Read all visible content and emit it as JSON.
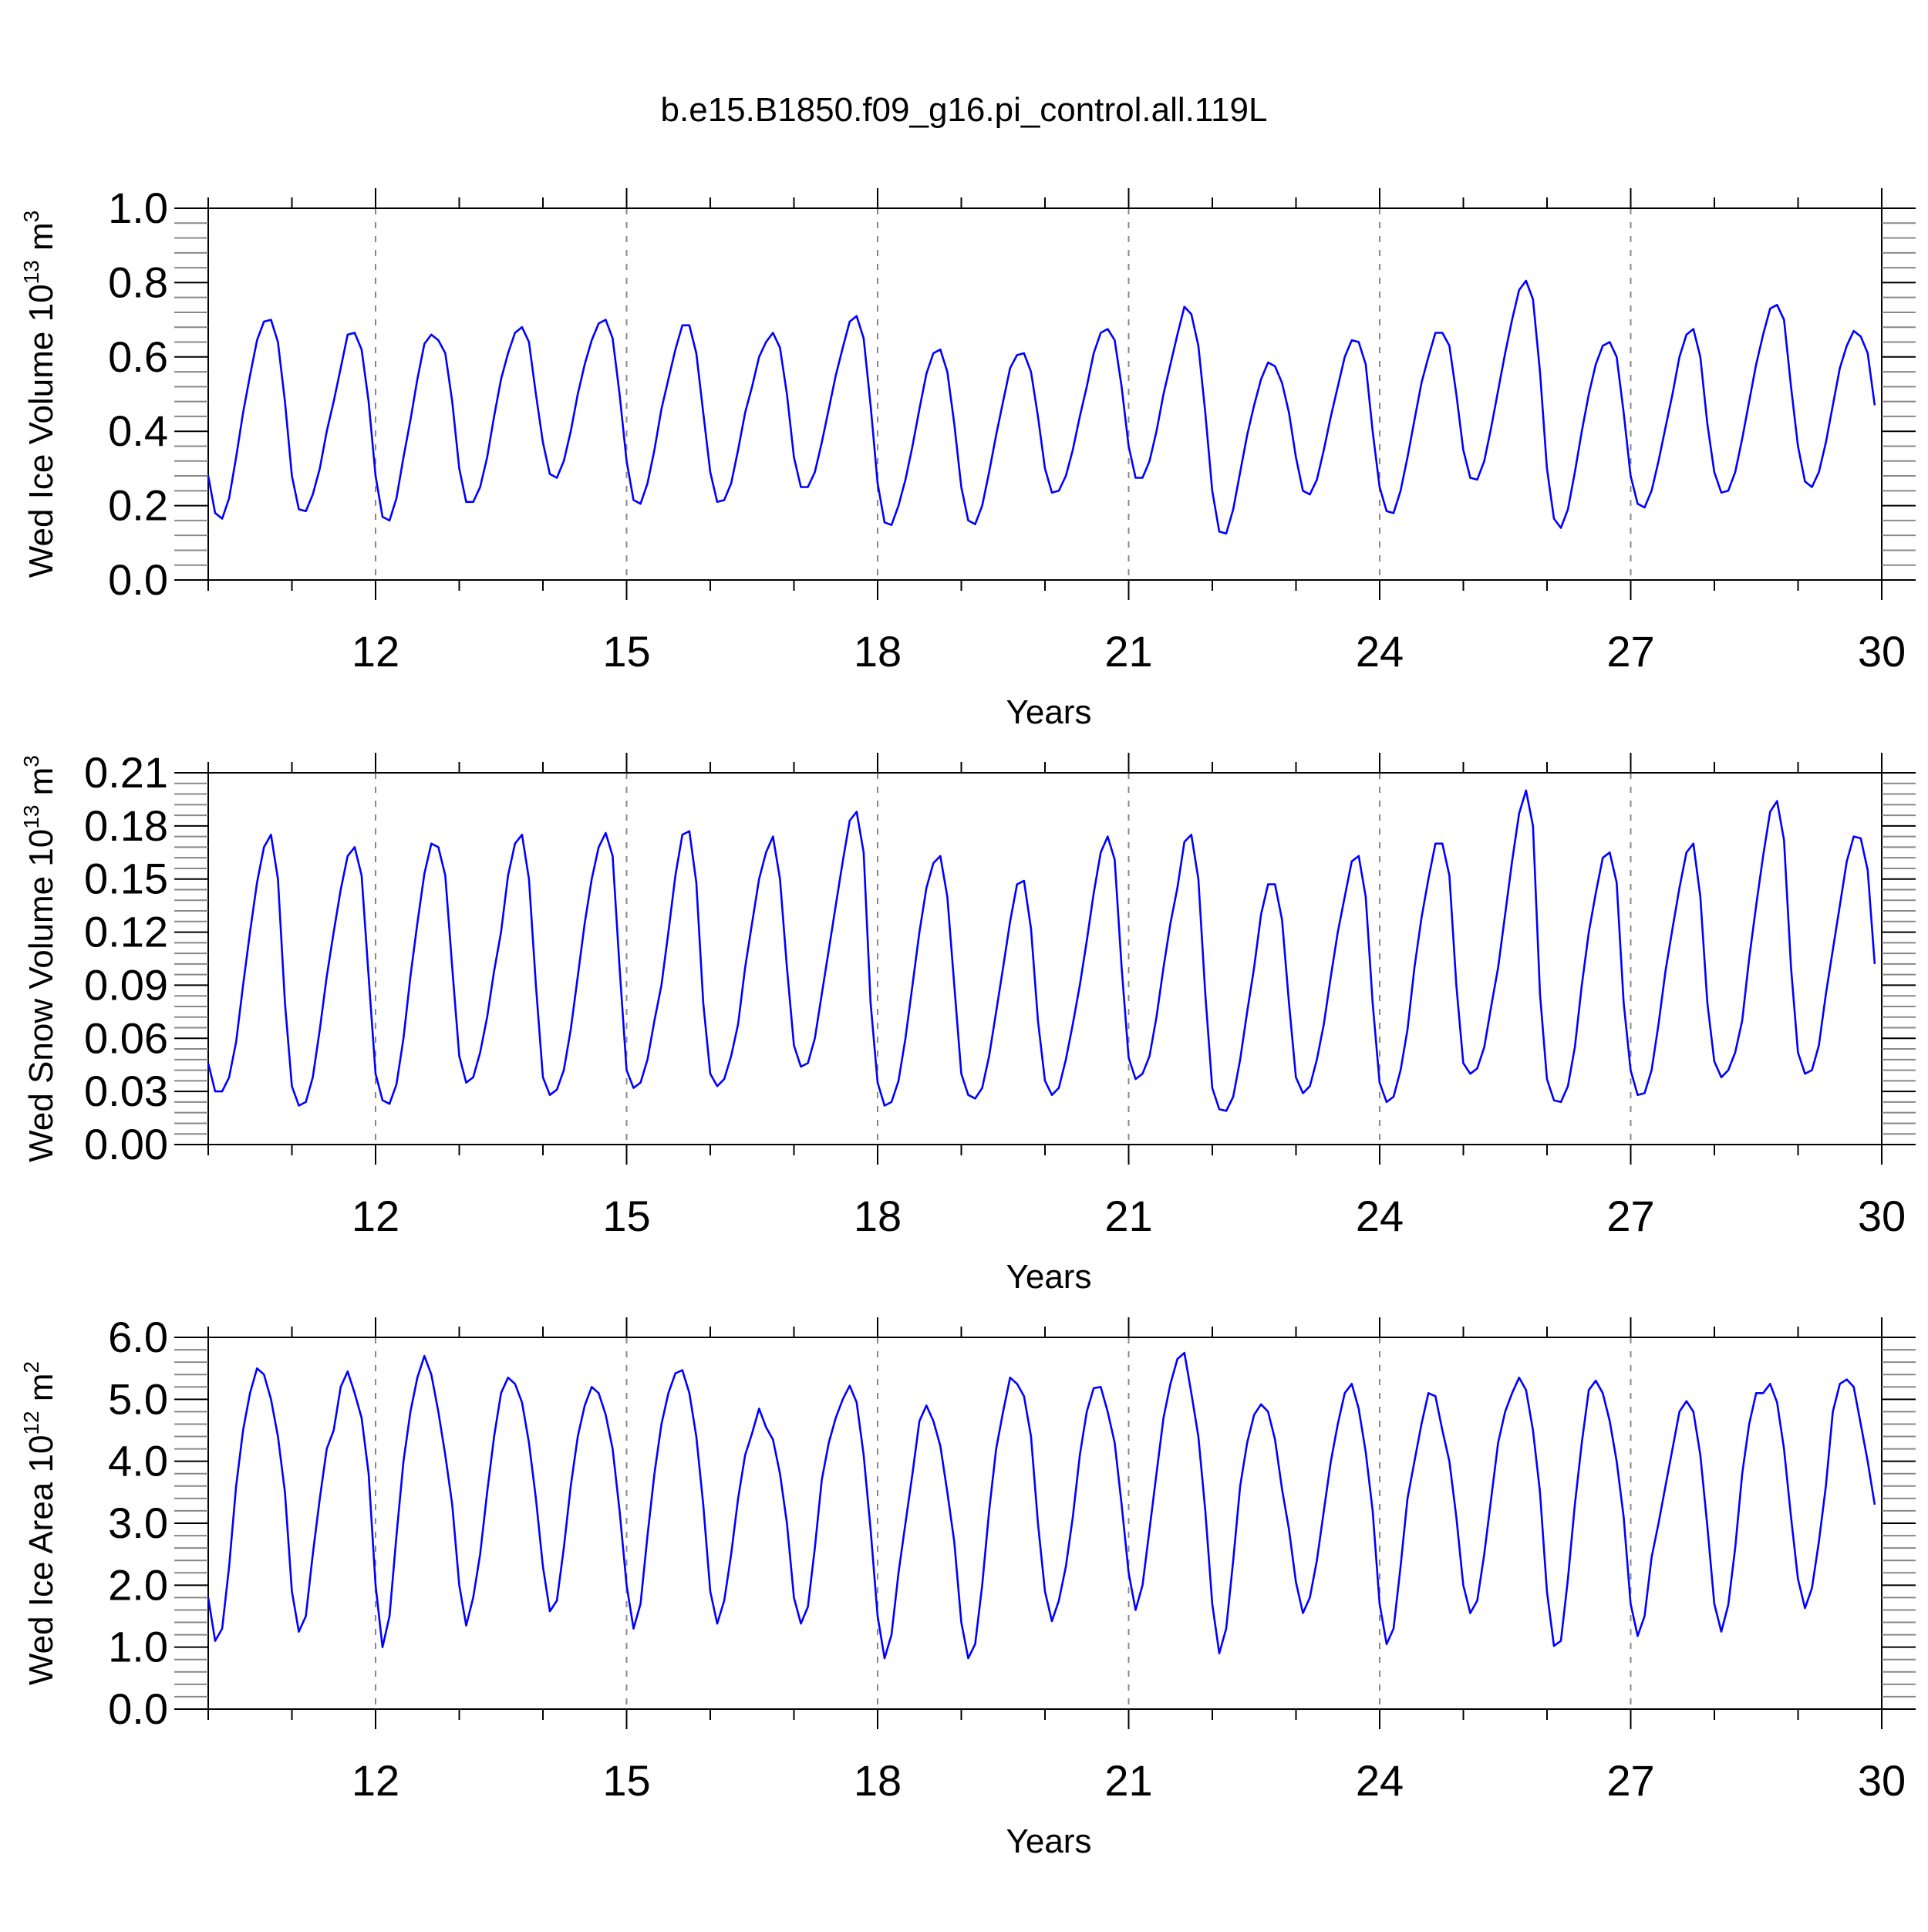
{
  "title": "b.e15.B1850.f09_g16.pi_control.all.119L",
  "chart_data": [
    {
      "type": "line",
      "ylabel": "Wed Ice Volume 10",
      "ylabel_sup": "13",
      "ylabel_unit": " m",
      "ylabel_unit_sup": "3",
      "xlabel": "Years",
      "xlim": [
        10,
        30
      ],
      "ylim": [
        0.0,
        1.0
      ],
      "x_ticks": [
        12,
        15,
        18,
        21,
        24,
        27,
        30
      ],
      "x_tick_labels": [
        "12",
        "15",
        "18",
        "21",
        "24",
        "27",
        "30"
      ],
      "y_ticks": [
        0.0,
        0.2,
        0.4,
        0.6,
        0.8,
        1.0
      ],
      "y_tick_labels": [
        "0.0",
        "0.2",
        "0.4",
        "0.6",
        "0.8",
        "1.0"
      ],
      "y_tick_decimals": 1,
      "grid": "vertical dashed at major x ticks",
      "line_color": "#0000ff",
      "x_start": 10.0,
      "x_step": 0.08333,
      "values": [
        0.28,
        0.18,
        0.165,
        0.22,
        0.33,
        0.45,
        0.55,
        0.645,
        0.695,
        0.7,
        0.64,
        0.48,
        0.28,
        0.19,
        0.185,
        0.23,
        0.3,
        0.4,
        0.48,
        0.57,
        0.66,
        0.665,
        0.62,
        0.48,
        0.28,
        0.17,
        0.16,
        0.22,
        0.33,
        0.43,
        0.54,
        0.635,
        0.66,
        0.645,
        0.61,
        0.48,
        0.3,
        0.21,
        0.21,
        0.25,
        0.33,
        0.44,
        0.54,
        0.61,
        0.665,
        0.68,
        0.64,
        0.5,
        0.37,
        0.285,
        0.275,
        0.32,
        0.4,
        0.5,
        0.58,
        0.645,
        0.69,
        0.7,
        0.65,
        0.5,
        0.32,
        0.215,
        0.205,
        0.26,
        0.35,
        0.46,
        0.54,
        0.62,
        0.685,
        0.685,
        0.61,
        0.45,
        0.29,
        0.21,
        0.215,
        0.26,
        0.35,
        0.45,
        0.52,
        0.6,
        0.64,
        0.665,
        0.625,
        0.5,
        0.33,
        0.25,
        0.25,
        0.29,
        0.37,
        0.46,
        0.55,
        0.625,
        0.695,
        0.71,
        0.65,
        0.47,
        0.26,
        0.155,
        0.148,
        0.2,
        0.27,
        0.36,
        0.46,
        0.555,
        0.61,
        0.62,
        0.56,
        0.42,
        0.25,
        0.16,
        0.15,
        0.2,
        0.29,
        0.39,
        0.48,
        0.57,
        0.605,
        0.61,
        0.56,
        0.44,
        0.3,
        0.235,
        0.24,
        0.28,
        0.35,
        0.44,
        0.52,
        0.61,
        0.665,
        0.675,
        0.645,
        0.52,
        0.36,
        0.275,
        0.275,
        0.32,
        0.4,
        0.5,
        0.58,
        0.66,
        0.735,
        0.715,
        0.63,
        0.45,
        0.24,
        0.13,
        0.125,
        0.19,
        0.29,
        0.39,
        0.47,
        0.54,
        0.585,
        0.575,
        0.53,
        0.45,
        0.33,
        0.24,
        0.23,
        0.27,
        0.35,
        0.44,
        0.52,
        0.6,
        0.645,
        0.64,
        0.58,
        0.4,
        0.25,
        0.185,
        0.18,
        0.24,
        0.33,
        0.43,
        0.53,
        0.6,
        0.665,
        0.665,
        0.63,
        0.5,
        0.35,
        0.275,
        0.27,
        0.32,
        0.41,
        0.51,
        0.61,
        0.7,
        0.78,
        0.805,
        0.755,
        0.56,
        0.3,
        0.165,
        0.14,
        0.19,
        0.29,
        0.4,
        0.5,
        0.58,
        0.63,
        0.64,
        0.6,
        0.45,
        0.28,
        0.205,
        0.195,
        0.24,
        0.32,
        0.41,
        0.5,
        0.6,
        0.66,
        0.675,
        0.6,
        0.42,
        0.29,
        0.235,
        0.24,
        0.29,
        0.38,
        0.48,
        0.58,
        0.66,
        0.73,
        0.74,
        0.7,
        0.52,
        0.36,
        0.265,
        0.25,
        0.29,
        0.37,
        0.47,
        0.57,
        0.63,
        0.67,
        0.655,
        0.61,
        0.47
      ]
    },
    {
      "type": "line",
      "ylabel": "Wed Snow Volume 10",
      "ylabel_sup": "13",
      "ylabel_unit": " m",
      "ylabel_unit_sup": "3",
      "xlabel": "Years",
      "xlim": [
        10,
        30
      ],
      "ylim": [
        0.0,
        0.21
      ],
      "x_ticks": [
        12,
        15,
        18,
        21,
        24,
        27,
        30
      ],
      "x_tick_labels": [
        "12",
        "15",
        "18",
        "21",
        "24",
        "27",
        "30"
      ],
      "y_ticks": [
        0.0,
        0.03,
        0.06,
        0.09,
        0.12,
        0.15,
        0.18,
        0.21
      ],
      "y_tick_labels": [
        "0.00",
        "0.03",
        "0.06",
        "0.09",
        "0.12",
        "0.15",
        "0.18",
        "0.21"
      ],
      "y_tick_decimals": 2,
      "grid": "vertical dashed at major x ticks",
      "line_color": "#0000ff",
      "x_start": 10.0,
      "x_step": 0.08333,
      "values": [
        0.046,
        0.03,
        0.03,
        0.038,
        0.058,
        0.09,
        0.12,
        0.148,
        0.168,
        0.175,
        0.15,
        0.08,
        0.033,
        0.022,
        0.024,
        0.038,
        0.065,
        0.095,
        0.12,
        0.144,
        0.163,
        0.168,
        0.152,
        0.095,
        0.04,
        0.025,
        0.023,
        0.034,
        0.06,
        0.095,
        0.125,
        0.153,
        0.17,
        0.168,
        0.152,
        0.1,
        0.05,
        0.035,
        0.038,
        0.052,
        0.072,
        0.098,
        0.12,
        0.152,
        0.17,
        0.175,
        0.15,
        0.09,
        0.038,
        0.028,
        0.031,
        0.042,
        0.065,
        0.095,
        0.125,
        0.15,
        0.168,
        0.176,
        0.163,
        0.1,
        0.042,
        0.032,
        0.035,
        0.048,
        0.07,
        0.09,
        0.12,
        0.152,
        0.175,
        0.177,
        0.148,
        0.08,
        0.04,
        0.033,
        0.037,
        0.05,
        0.068,
        0.1,
        0.125,
        0.15,
        0.165,
        0.174,
        0.15,
        0.1,
        0.056,
        0.044,
        0.046,
        0.06,
        0.085,
        0.11,
        0.135,
        0.16,
        0.183,
        0.188,
        0.165,
        0.08,
        0.035,
        0.022,
        0.024,
        0.036,
        0.06,
        0.09,
        0.12,
        0.145,
        0.159,
        0.163,
        0.14,
        0.09,
        0.04,
        0.028,
        0.026,
        0.032,
        0.05,
        0.075,
        0.1,
        0.126,
        0.147,
        0.149,
        0.122,
        0.07,
        0.036,
        0.028,
        0.032,
        0.048,
        0.068,
        0.09,
        0.115,
        0.142,
        0.165,
        0.174,
        0.161,
        0.1,
        0.049,
        0.037,
        0.04,
        0.05,
        0.072,
        0.1,
        0.125,
        0.145,
        0.171,
        0.175,
        0.15,
        0.085,
        0.032,
        0.02,
        0.019,
        0.027,
        0.048,
        0.075,
        0.1,
        0.13,
        0.147,
        0.147,
        0.127,
        0.08,
        0.038,
        0.029,
        0.033,
        0.048,
        0.068,
        0.095,
        0.12,
        0.14,
        0.16,
        0.163,
        0.14,
        0.08,
        0.035,
        0.024,
        0.027,
        0.042,
        0.065,
        0.1,
        0.128,
        0.15,
        0.17,
        0.17,
        0.152,
        0.09,
        0.046,
        0.04,
        0.043,
        0.055,
        0.078,
        0.1,
        0.13,
        0.16,
        0.187,
        0.2,
        0.18,
        0.085,
        0.037,
        0.025,
        0.024,
        0.033,
        0.055,
        0.09,
        0.12,
        0.142,
        0.162,
        0.165,
        0.148,
        0.08,
        0.042,
        0.028,
        0.029,
        0.042,
        0.068,
        0.098,
        0.122,
        0.145,
        0.165,
        0.17,
        0.14,
        0.08,
        0.047,
        0.038,
        0.042,
        0.052,
        0.07,
        0.105,
        0.135,
        0.163,
        0.188,
        0.194,
        0.172,
        0.1,
        0.052,
        0.04,
        0.042,
        0.056,
        0.085,
        0.11,
        0.135,
        0.16,
        0.174,
        0.173,
        0.155,
        0.102
      ]
    },
    {
      "type": "line",
      "ylabel": "Wed Ice Area 10",
      "ylabel_sup": "12",
      "ylabel_unit": " m",
      "ylabel_unit_sup": "2",
      "xlabel": "Years",
      "xlim": [
        10,
        30
      ],
      "ylim": [
        0.0,
        6.0
      ],
      "x_ticks": [
        12,
        15,
        18,
        21,
        24,
        27,
        30
      ],
      "x_tick_labels": [
        "12",
        "15",
        "18",
        "21",
        "24",
        "27",
        "30"
      ],
      "y_ticks": [
        0.0,
        1.0,
        2.0,
        3.0,
        4.0,
        5.0,
        6.0
      ],
      "y_tick_labels": [
        "0.0",
        "1.0",
        "2.0",
        "3.0",
        "4.0",
        "5.0",
        "6.0"
      ],
      "y_tick_decimals": 1,
      "grid": "vertical dashed at major x ticks",
      "line_color": "#0000ff",
      "x_start": 10.0,
      "x_step": 0.08333,
      "values": [
        1.8,
        1.1,
        1.3,
        2.3,
        3.6,
        4.5,
        5.1,
        5.5,
        5.4,
        5.0,
        4.4,
        3.5,
        1.9,
        1.25,
        1.5,
        2.5,
        3.4,
        4.2,
        4.5,
        5.2,
        5.45,
        5.1,
        4.7,
        3.8,
        2.0,
        1.0,
        1.5,
        2.8,
        4.0,
        4.8,
        5.35,
        5.7,
        5.4,
        4.8,
        4.1,
        3.3,
        2.0,
        1.35,
        1.8,
        2.5,
        3.5,
        4.4,
        5.1,
        5.35,
        5.25,
        4.95,
        4.3,
        3.4,
        2.3,
        1.58,
        1.75,
        2.6,
        3.6,
        4.4,
        4.9,
        5.2,
        5.1,
        4.75,
        4.2,
        3.2,
        2.0,
        1.3,
        1.7,
        2.8,
        3.8,
        4.6,
        5.1,
        5.42,
        5.47,
        5.1,
        4.4,
        3.3,
        1.9,
        1.38,
        1.75,
        2.5,
        3.4,
        4.1,
        4.45,
        4.85,
        4.55,
        4.35,
        3.8,
        3.0,
        1.8,
        1.38,
        1.65,
        2.6,
        3.7,
        4.3,
        4.7,
        5.0,
        5.22,
        4.95,
        4.1,
        2.9,
        1.5,
        0.82,
        1.2,
        2.2,
        3.0,
        3.8,
        4.65,
        4.9,
        4.65,
        4.25,
        3.5,
        2.7,
        1.4,
        0.82,
        1.05,
        2.0,
        3.2,
        4.2,
        4.8,
        5.35,
        5.25,
        5.05,
        4.4,
        3.0,
        1.9,
        1.42,
        1.75,
        2.3,
        3.1,
        4.1,
        4.8,
        5.18,
        5.2,
        4.8,
        4.3,
        3.3,
        2.2,
        1.6,
        2.0,
        2.9,
        3.8,
        4.7,
        5.25,
        5.65,
        5.75,
        5.1,
        4.4,
        3.2,
        1.7,
        0.9,
        1.3,
        2.4,
        3.6,
        4.3,
        4.75,
        4.92,
        4.8,
        4.35,
        3.55,
        2.9,
        2.05,
        1.55,
        1.8,
        2.4,
        3.2,
        4.0,
        4.6,
        5.1,
        5.25,
        4.85,
        4.15,
        3.2,
        1.7,
        1.05,
        1.3,
        2.3,
        3.4,
        4.0,
        4.6,
        5.1,
        5.05,
        4.5,
        4.0,
        3.1,
        2.0,
        1.55,
        1.75,
        2.5,
        3.4,
        4.3,
        4.8,
        5.1,
        5.35,
        5.15,
        4.5,
        3.5,
        1.9,
        1.02,
        1.1,
        2.1,
        3.3,
        4.3,
        5.15,
        5.3,
        5.1,
        4.65,
        4.0,
        3.1,
        1.7,
        1.18,
        1.5,
        2.45,
        3.0,
        3.6,
        4.2,
        4.8,
        4.97,
        4.8,
        4.1,
        2.95,
        1.7,
        1.25,
        1.68,
        2.6,
        3.8,
        4.6,
        5.1,
        5.1,
        5.25,
        4.95,
        4.2,
        3.1,
        2.1,
        1.63,
        1.95,
        2.7,
        3.6,
        4.8,
        5.25,
        5.32,
        5.2,
        4.6,
        4.0,
        3.3
      ]
    }
  ]
}
